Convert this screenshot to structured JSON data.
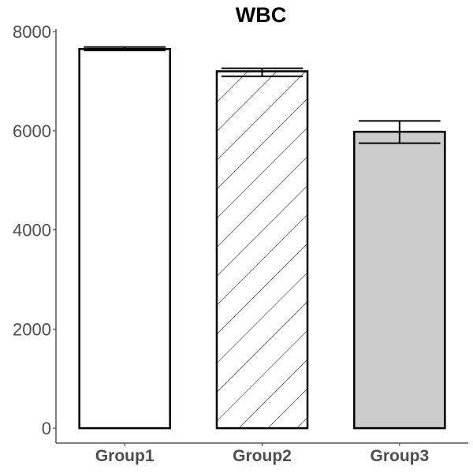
{
  "chart_data": {
    "type": "bar",
    "title": "WBC",
    "xlabel": "",
    "ylabel": "",
    "categories": [
      "Group1",
      "Group2",
      "Group3"
    ],
    "values": [
      7650,
      7200,
      5980
    ],
    "error_low": [
      7620,
      7100,
      5750
    ],
    "error_high": [
      7690,
      7260,
      6200
    ],
    "fills": [
      "#ffffff",
      "hatch",
      "#cccccc"
    ],
    "ylim": [
      -300,
      8050
    ],
    "yticks": [
      0,
      2000,
      4000,
      6000,
      8000
    ],
    "ytick_labels": [
      "0",
      "2000",
      "4000",
      "6000",
      "8000"
    ],
    "grid": false,
    "legend": "none"
  }
}
